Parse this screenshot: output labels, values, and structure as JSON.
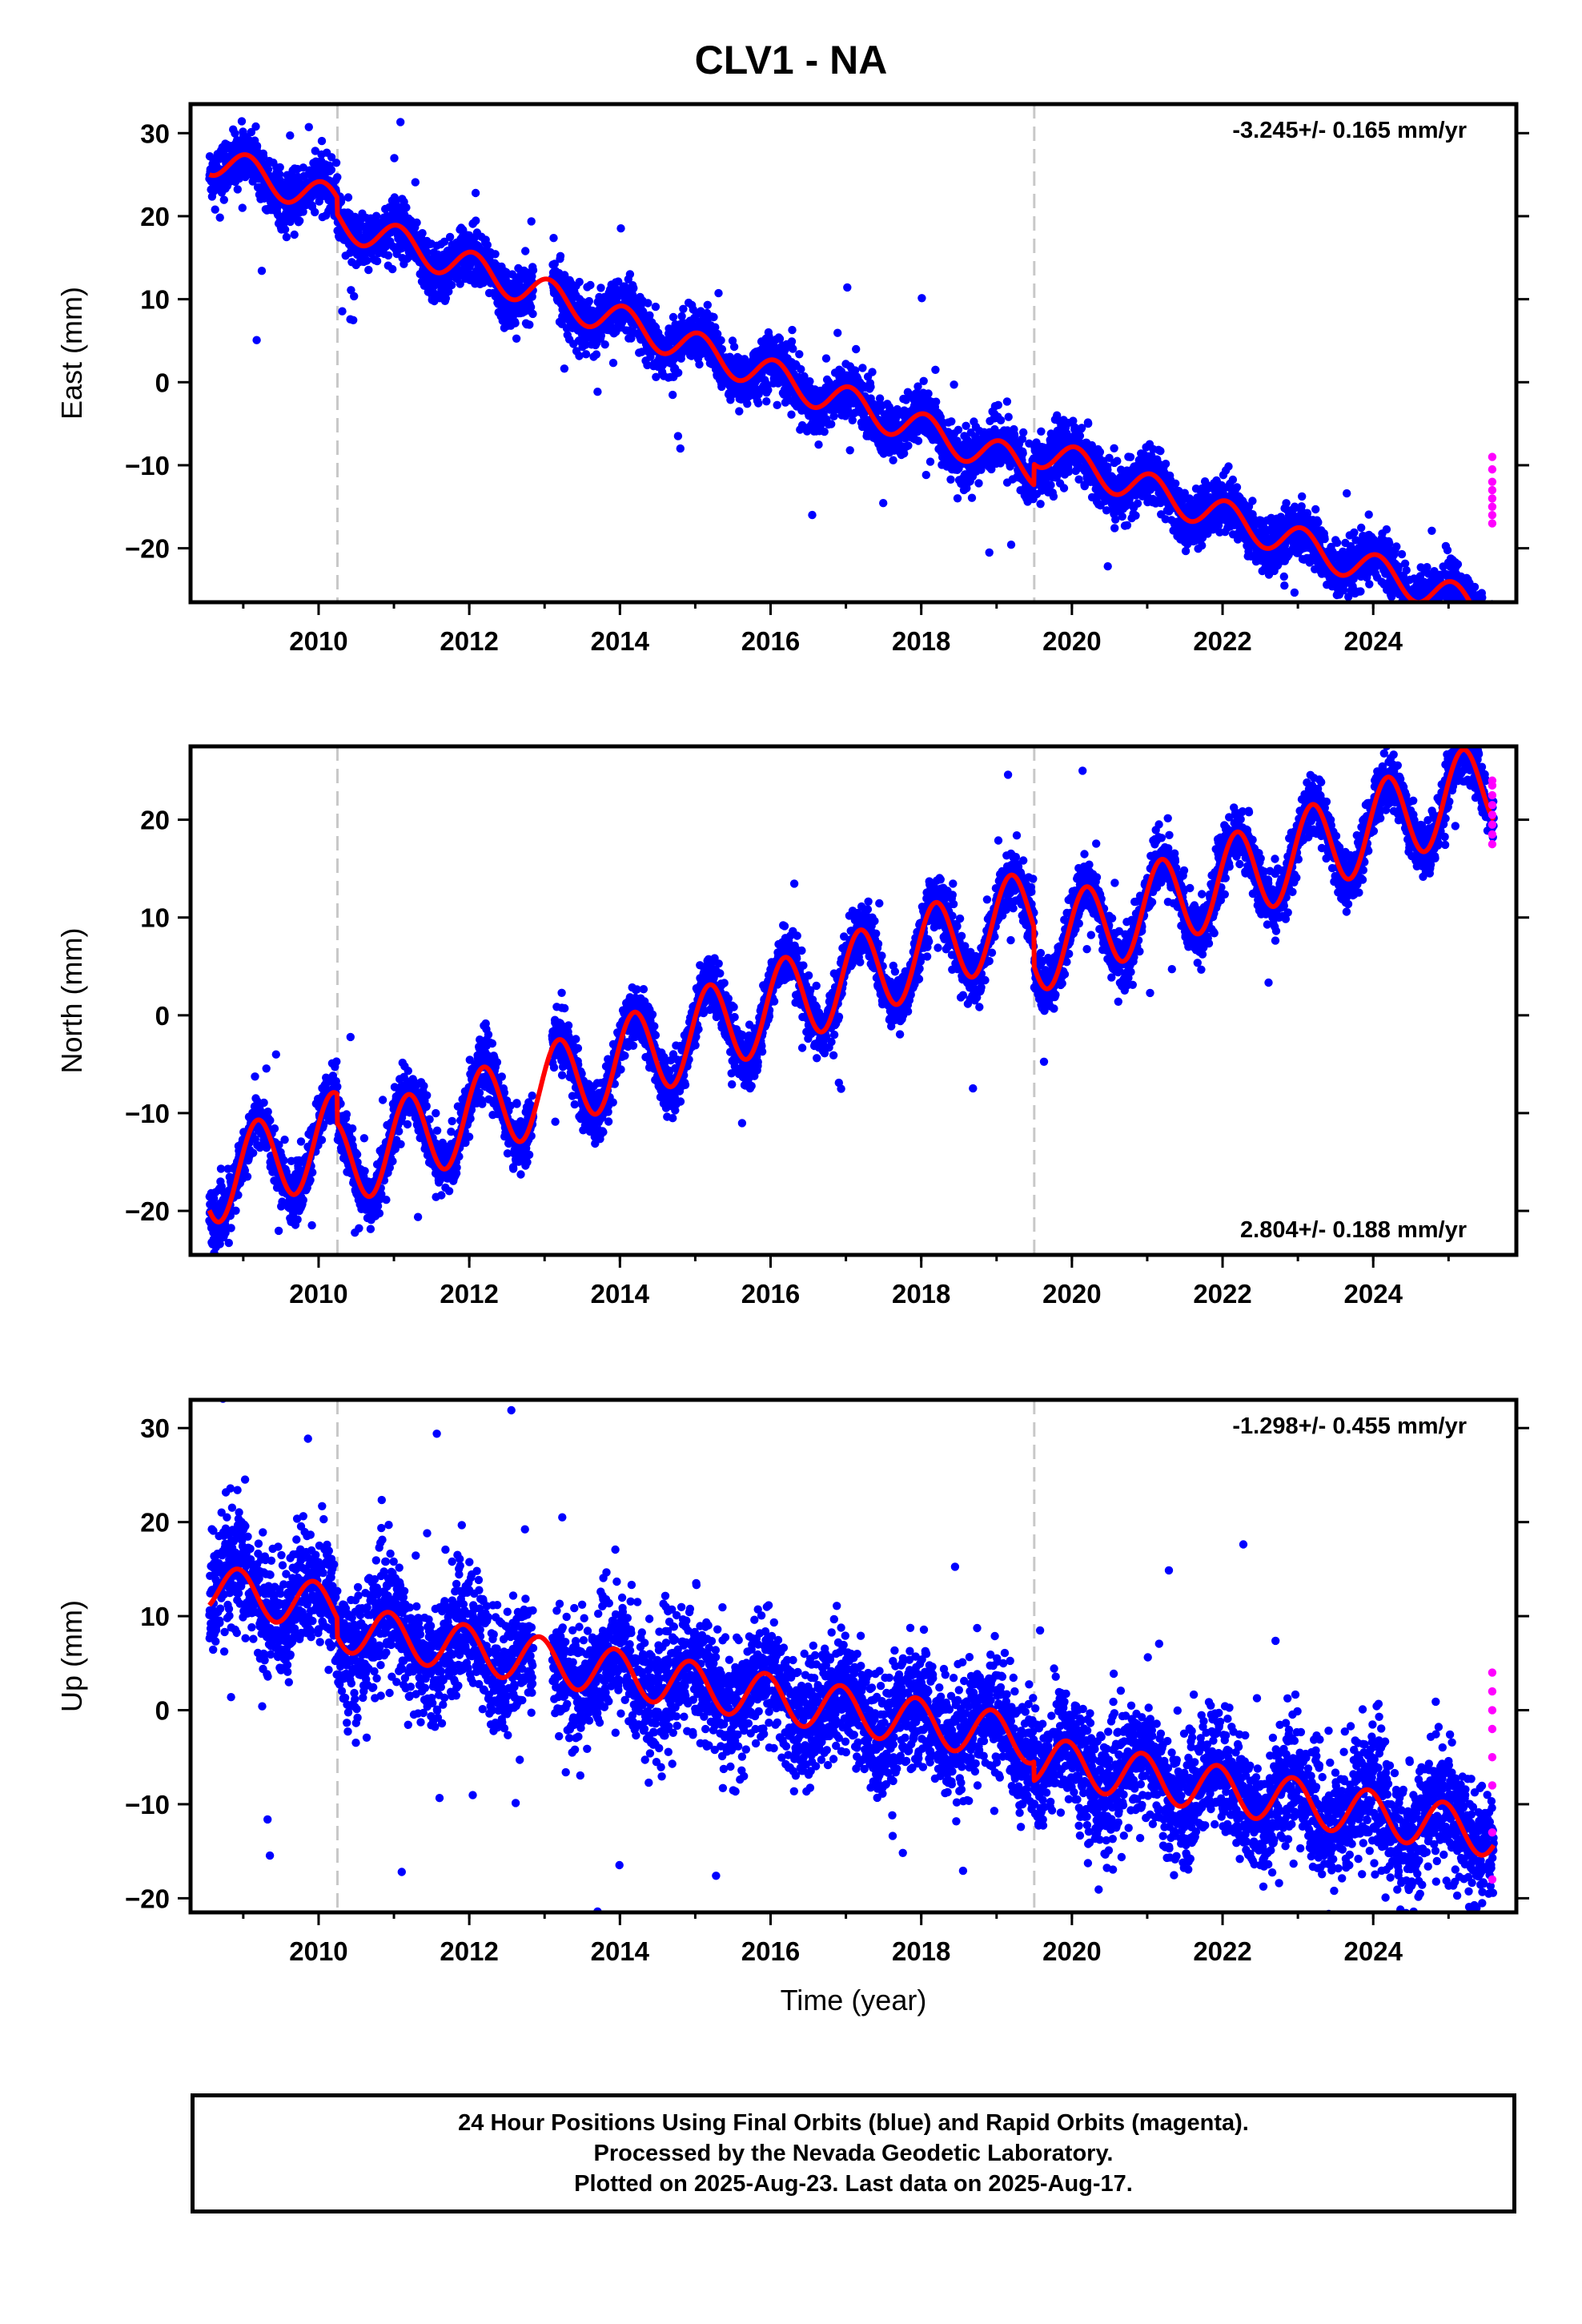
{
  "title": "CLV1 - NA",
  "colors": {
    "final": "#0000ff",
    "rapid": "#ff00ff",
    "model": "#ff0000",
    "events": "#c8c8c8"
  },
  "chart_data": [
    {
      "type": "scatter",
      "component": "East",
      "ylabel": "East (mm)",
      "xlabel": "",
      "rate_text": "-3.245+/- 0.165 mm/yr",
      "rate_position": "top-right",
      "xlim": [
        2008.3,
        2025.9
      ],
      "ylim": [
        -26.5,
        33.5
      ],
      "xticks": [
        2010,
        2012,
        2014,
        2016,
        2018,
        2020,
        2022,
        2024
      ],
      "xtick_labels": [
        "2010",
        "2012",
        "2014",
        "2016",
        "2018",
        "2020",
        "2022",
        "2024"
      ],
      "yticks": [
        -20,
        -10,
        0,
        10,
        20,
        30
      ],
      "ytick_labels": [
        "−20",
        "−10",
        "0",
        "10",
        "20",
        "30"
      ],
      "event_lines_x": [
        2010.25,
        2019.5
      ],
      "model": {
        "t0": 2008.55,
        "t1": 2025.6,
        "offset": 27.0,
        "rate": -3.245,
        "annual_amp": 2.0,
        "annual_phase": 1.2,
        "steps": [
          {
            "x": 2010.25,
            "dy": -2.0
          },
          {
            "x": 2019.5,
            "dy": 2.5
          }
        ]
      },
      "scatter_noise_sd": 1.6,
      "rapid": {
        "x": 2025.58,
        "y": [
          -9,
          -10.5,
          -12,
          -13,
          -14,
          -15,
          -16,
          -17
        ]
      }
    },
    {
      "type": "scatter",
      "component": "North",
      "ylabel": "North (mm)",
      "xlabel": "",
      "rate_text": "2.804+/- 0.188 mm/yr",
      "rate_position": "bottom-right",
      "xlim": [
        2008.3,
        2025.9
      ],
      "ylim": [
        -24.5,
        27.5
      ],
      "xticks": [
        2010,
        2012,
        2014,
        2016,
        2018,
        2020,
        2022,
        2024
      ],
      "xtick_labels": [
        "2010",
        "2012",
        "2014",
        "2016",
        "2018",
        "2020",
        "2022",
        "2024"
      ],
      "yticks": [
        -20,
        -10,
        0,
        10,
        20
      ],
      "ytick_labels": [
        "−20",
        "−10",
        "0",
        "10",
        "20"
      ],
      "event_lines_x": [
        2010.25,
        2019.5
      ],
      "model": {
        "t0": 2008.55,
        "t1": 2025.6,
        "offset": -17.0,
        "rate": 2.804,
        "annual_amp": 4.5,
        "annual_phase": 0.4,
        "steps": [
          {
            "x": 2010.25,
            "dy": -3.0
          },
          {
            "x": 2019.5,
            "dy": -4.0
          }
        ]
      },
      "scatter_noise_sd": 1.4,
      "rapid": {
        "x": 2025.58,
        "y": [
          17.5,
          18.5,
          19.5,
          20.5,
          21.5,
          22.5,
          23.5,
          24
        ]
      }
    },
    {
      "type": "scatter",
      "component": "Up",
      "ylabel": "Up (mm)",
      "xlabel": "Time (year)",
      "rate_text": "-1.298+/- 0.455 mm/yr",
      "rate_position": "top-right",
      "xlim": [
        2008.3,
        2025.9
      ],
      "ylim": [
        -21.5,
        33
      ],
      "xticks": [
        2010,
        2012,
        2014,
        2016,
        2018,
        2020,
        2022,
        2024
      ],
      "xtick_labels": [
        "2010",
        "2012",
        "2014",
        "2016",
        "2018",
        "2020",
        "2022",
        "2024"
      ],
      "yticks": [
        -20,
        -10,
        0,
        10,
        20,
        30
      ],
      "ytick_labels": [
        "−20",
        "−10",
        "0",
        "10",
        "20",
        "30"
      ],
      "event_lines_x": [
        2010.25,
        2019.5
      ],
      "model": {
        "t0": 2008.55,
        "t1": 2025.6,
        "offset": 13.0,
        "rate": -1.298,
        "annual_amp": 2.5,
        "annual_phase": 2.0,
        "steps": [
          {
            "x": 2010.25,
            "dy": -2.0
          },
          {
            "x": 2019.5,
            "dy": -2.0
          }
        ]
      },
      "scatter_noise_sd": 3.2,
      "rapid": {
        "x": 2025.58,
        "y": [
          -18,
          -13,
          -8,
          -5,
          -2,
          0,
          2,
          4
        ]
      }
    }
  ],
  "footer": {
    "line1": "24 Hour Positions Using Final Orbits (blue) and Rapid Orbits (magenta).",
    "line2": "Processed by the Nevada Geodetic Laboratory.",
    "line3": "Plotted on 2025-Aug-23. Last data on 2025-Aug-17."
  }
}
